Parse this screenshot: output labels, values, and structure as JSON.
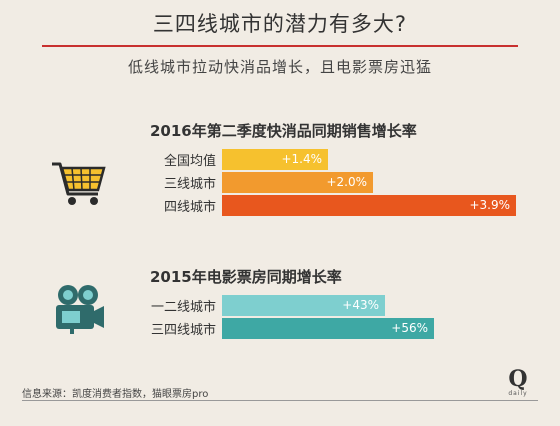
{
  "header": {
    "title": "三四线城市的潜力有多大?",
    "subtitle": "低线城市拉动快消品增长，且电影票房迅猛"
  },
  "chart_data": [
    {
      "type": "bar",
      "orientation": "horizontal",
      "title": "2016年第二季度快消品同期销售增长率",
      "categories": [
        "全国均值",
        "三线城市",
        "四线城市"
      ],
      "values": [
        1.4,
        2.0,
        3.9
      ],
      "value_labels": [
        "+1.4%",
        "+2.0%",
        "+3.9%"
      ],
      "colors": [
        "#f6c12e",
        "#f29a2e",
        "#e8571e"
      ],
      "icon": "shopping-cart-icon"
    },
    {
      "type": "bar",
      "orientation": "horizontal",
      "title": "2015年电影票房同期增长率",
      "categories": [
        "一二线城市",
        "三四线城市"
      ],
      "values": [
        43,
        56
      ],
      "value_labels": [
        "+43%",
        "+56%"
      ],
      "colors": [
        "#7ecfcf",
        "#3ea8a4"
      ],
      "icon": "movie-camera-icon"
    }
  ],
  "footer": {
    "source": "信息来源：凯度消费者指数，猫眼票房pro",
    "logo_letter": "Q",
    "logo_text": "daily"
  }
}
